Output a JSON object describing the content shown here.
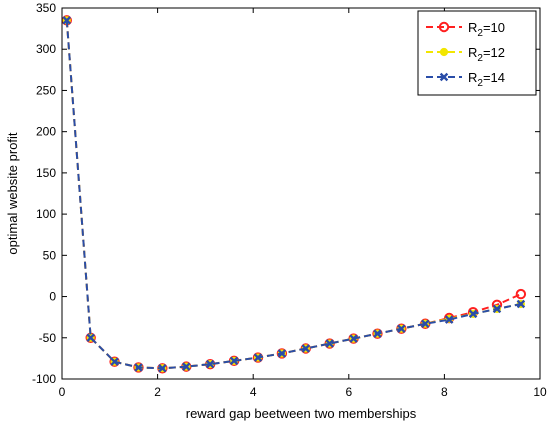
{
  "chart_data": {
    "type": "line",
    "title": "",
    "xlabel": "reward gap beetween two memberships",
    "ylabel": "optimal website profit",
    "xlim": [
      0,
      10
    ],
    "ylim": [
      -100,
      350
    ],
    "xticks": [
      0,
      2,
      4,
      6,
      8,
      10
    ],
    "yticks": [
      -100,
      -50,
      0,
      50,
      100,
      150,
      200,
      250,
      300,
      350
    ],
    "grid": false,
    "legend_position": "top-right",
    "x": [
      0.1,
      0.6,
      1.1,
      1.6,
      2.1,
      2.6,
      3.1,
      3.6,
      4.1,
      4.6,
      5.1,
      5.6,
      6.1,
      6.6,
      7.1,
      7.6,
      8.1,
      8.6,
      9.1,
      9.6
    ],
    "series": [
      {
        "name_prefix": "R",
        "name_subscript": "2",
        "name_suffix": "=10",
        "color": "#ff2020",
        "marker": "circle",
        "values": [
          335,
          -50,
          -79,
          -86,
          -87,
          -85,
          -82,
          -78,
          -74,
          -69,
          -63,
          -57,
          -51,
          -45,
          -39,
          -33,
          -26,
          -19,
          -10,
          3
        ]
      },
      {
        "name_prefix": "R",
        "name_subscript": "2",
        "name_suffix": "=12",
        "color": "#f2e600",
        "marker": "dot",
        "values": [
          335,
          -50,
          -79,
          -86,
          -87,
          -85,
          -82,
          -78,
          -74,
          -69,
          -63,
          -57,
          -51,
          -45,
          -39,
          -33,
          -27,
          -21,
          -15,
          -9
        ]
      },
      {
        "name_prefix": "R",
        "name_subscript": "2",
        "name_suffix": "=14",
        "color": "#2a4da8",
        "marker": "x",
        "values": [
          335,
          -50,
          -79,
          -86,
          -87,
          -85,
          -82,
          -78,
          -74,
          -69,
          -63,
          -57,
          -51,
          -45,
          -39,
          -33,
          -28,
          -21,
          -15,
          -9
        ]
      }
    ]
  }
}
